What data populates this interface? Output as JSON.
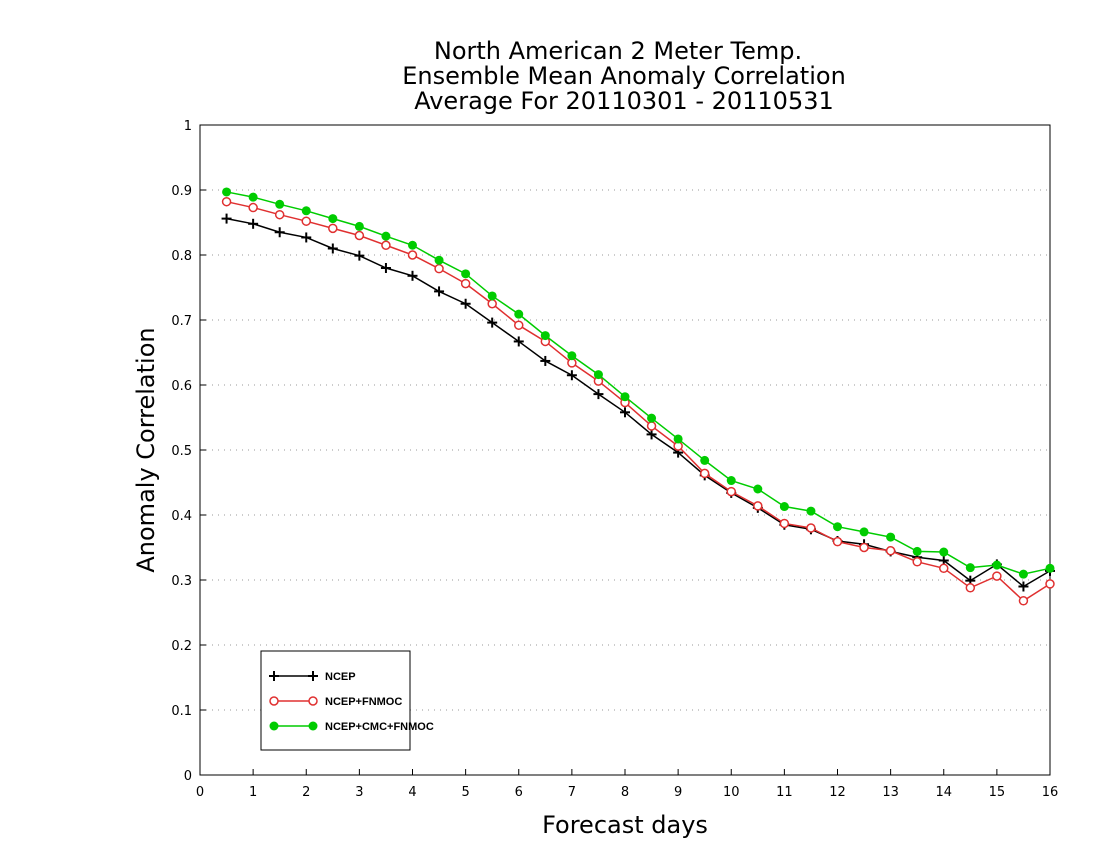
{
  "chart_data": {
    "type": "line",
    "title_lines": [
      "North American 2 Meter Temp.",
      "Ensemble Mean Anomaly Correlation",
      "Average For 20110301 - 20110531"
    ],
    "xlabel": "Forecast days",
    "ylabel": "Anomaly Correlation",
    "xlim": [
      0,
      16
    ],
    "ylim": [
      0,
      1
    ],
    "x_ticks": [
      "0",
      "1",
      "2",
      "3",
      "4",
      "5",
      "6",
      "7",
      "8",
      "9",
      "10",
      "11",
      "12",
      "13",
      "14",
      "15",
      "16"
    ],
    "y_ticks": [
      "0",
      "0.1",
      "0.2",
      "0.3",
      "0.4",
      "0.5",
      "0.6",
      "0.7",
      "0.8",
      "0.9",
      "1"
    ],
    "grid": "horizontal dotted",
    "legend_position": "bottom-left",
    "x": [
      0.5,
      1,
      1.5,
      2,
      2.5,
      3,
      3.5,
      4,
      4.5,
      5,
      5.5,
      6,
      6.5,
      7,
      7.5,
      8,
      8.5,
      9,
      9.5,
      10,
      10.5,
      11,
      11.5,
      12,
      12.5,
      13,
      13.5,
      14,
      14.5,
      15,
      15.5,
      16
    ],
    "series": [
      {
        "name": "NCEP",
        "color": "#000000",
        "marker": "plus",
        "values": [
          0.856,
          0.848,
          0.835,
          0.827,
          0.81,
          0.799,
          0.78,
          0.768,
          0.744,
          0.725,
          0.696,
          0.667,
          0.637,
          0.615,
          0.586,
          0.558,
          0.524,
          0.496,
          0.461,
          0.434,
          0.411,
          0.385,
          0.378,
          0.36,
          0.355,
          0.344,
          0.335,
          0.33,
          0.299,
          0.324,
          0.29,
          0.314
        ]
      },
      {
        "name": "NCEP+FNMOC",
        "color": "#e03030",
        "marker": "open-circle",
        "values": [
          0.882,
          0.873,
          0.862,
          0.852,
          0.841,
          0.83,
          0.815,
          0.8,
          0.779,
          0.756,
          0.725,
          0.692,
          0.667,
          0.634,
          0.606,
          0.573,
          0.537,
          0.506,
          0.464,
          0.436,
          0.414,
          0.387,
          0.38,
          0.359,
          0.35,
          0.345,
          0.328,
          0.318,
          0.288,
          0.306,
          0.268,
          0.294
        ]
      },
      {
        "name": "NCEP+CMC+FNMOC",
        "color": "#00cc00",
        "marker": "filled-circle",
        "values": [
          0.897,
          0.889,
          0.878,
          0.868,
          0.856,
          0.844,
          0.829,
          0.815,
          0.792,
          0.771,
          0.737,
          0.709,
          0.676,
          0.645,
          0.616,
          0.582,
          0.549,
          0.517,
          0.484,
          0.453,
          0.44,
          0.413,
          0.406,
          0.382,
          0.374,
          0.366,
          0.344,
          0.343,
          0.319,
          0.323,
          0.309,
          0.318
        ]
      }
    ]
  }
}
